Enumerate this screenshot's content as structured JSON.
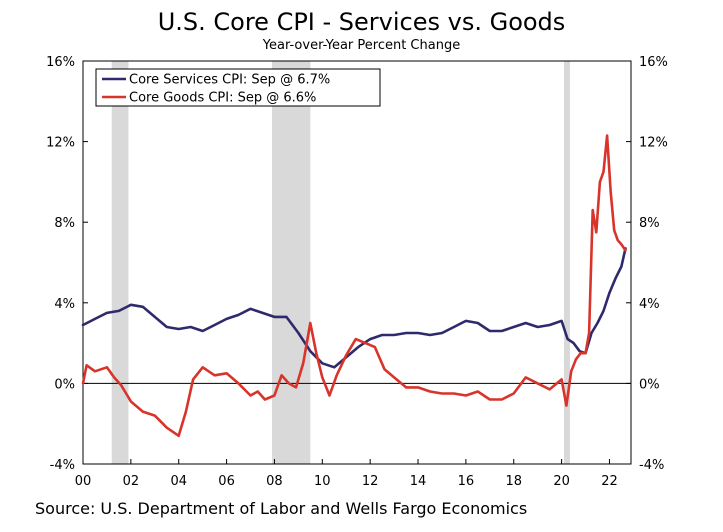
{
  "chart_data": {
    "type": "line",
    "title": "U.S. Core CPI - Services vs. Goods",
    "subtitle": "Year-over-Year Percent Change",
    "source": "Source: U.S. Department of Labor and Wells Fargo Economics",
    "ylim": [
      -4,
      16
    ],
    "xlim": [
      2000.0,
      2022.9
    ],
    "y_ticks": [
      -4,
      0,
      4,
      8,
      12,
      16
    ],
    "y_tick_labels": [
      "-4%",
      "0%",
      "4%",
      "8%",
      "12%",
      "16%"
    ],
    "x_ticks": [
      2000,
      2002,
      2004,
      2006,
      2008,
      2010,
      2012,
      2014,
      2016,
      2018,
      2020,
      2022
    ],
    "x_tick_labels": [
      "00",
      "02",
      "04",
      "06",
      "08",
      "10",
      "12",
      "14",
      "16",
      "18",
      "20",
      "22"
    ],
    "legend_position": "top-left",
    "grid": false,
    "recession_shading": [
      [
        2001.2,
        2001.9
      ],
      [
        2007.9,
        2009.5
      ],
      [
        2020.1,
        2020.35
      ]
    ],
    "colors": {
      "services": "#2e2a6b",
      "goods": "#d9342b",
      "shading": "#d9d9d9",
      "zero_line": "#000000"
    },
    "series": [
      {
        "name": "Core Services CPI: Sep @ 6.7%",
        "key": "services",
        "x": [
          2000.0,
          2000.5,
          2001.0,
          2001.5,
          2002.0,
          2002.5,
          2003.0,
          2003.5,
          2004.0,
          2004.5,
          2005.0,
          2005.5,
          2006.0,
          2006.5,
          2007.0,
          2007.5,
          2008.0,
          2008.5,
          2009.0,
          2009.5,
          2010.0,
          2010.5,
          2011.0,
          2011.5,
          2012.0,
          2012.5,
          2013.0,
          2013.5,
          2014.0,
          2014.5,
          2015.0,
          2015.5,
          2016.0,
          2016.5,
          2017.0,
          2017.5,
          2018.0,
          2018.5,
          2019.0,
          2019.5,
          2020.0,
          2020.25,
          2020.5,
          2020.75,
          2021.0,
          2021.25,
          2021.5,
          2021.75,
          2022.0,
          2022.25,
          2022.5,
          2022.67
        ],
        "y": [
          2.9,
          3.2,
          3.5,
          3.6,
          3.9,
          3.8,
          3.3,
          2.8,
          2.7,
          2.8,
          2.6,
          2.9,
          3.2,
          3.4,
          3.7,
          3.5,
          3.3,
          3.3,
          2.5,
          1.6,
          1.0,
          0.8,
          1.3,
          1.8,
          2.2,
          2.4,
          2.4,
          2.5,
          2.5,
          2.4,
          2.5,
          2.8,
          3.1,
          3.0,
          2.6,
          2.6,
          2.8,
          3.0,
          2.8,
          2.9,
          3.1,
          2.2,
          2.0,
          1.6,
          1.5,
          2.5,
          3.0,
          3.6,
          4.5,
          5.2,
          5.8,
          6.7
        ]
      },
      {
        "name": "Core Goods CPI: Sep @ 6.6%",
        "key": "goods",
        "x": [
          2000.0,
          2000.15,
          2000.5,
          2001.0,
          2001.3,
          2001.6,
          2002.0,
          2002.5,
          2003.0,
          2003.5,
          2004.0,
          2004.3,
          2004.6,
          2005.0,
          2005.5,
          2006.0,
          2006.5,
          2007.0,
          2007.3,
          2007.6,
          2008.0,
          2008.3,
          2008.6,
          2008.9,
          2009.2,
          2009.5,
          2009.75,
          2010.0,
          2010.3,
          2010.6,
          2011.0,
          2011.4,
          2011.8,
          2012.2,
          2012.6,
          2013.0,
          2013.5,
          2014.0,
          2014.5,
          2015.0,
          2015.5,
          2016.0,
          2016.5,
          2017.0,
          2017.5,
          2018.0,
          2018.5,
          2019.0,
          2019.5,
          2020.0,
          2020.2,
          2020.4,
          2020.6,
          2020.8,
          2021.0,
          2021.15,
          2021.3,
          2021.45,
          2021.6,
          2021.75,
          2021.9,
          2022.05,
          2022.2,
          2022.35,
          2022.5,
          2022.67
        ],
        "y": [
          0.0,
          0.9,
          0.6,
          0.8,
          0.3,
          -0.1,
          -0.9,
          -1.4,
          -1.6,
          -2.2,
          -2.6,
          -1.4,
          0.2,
          0.8,
          0.4,
          0.5,
          0.0,
          -0.6,
          -0.4,
          -0.8,
          -0.6,
          0.4,
          0.0,
          -0.2,
          1.0,
          3.0,
          1.5,
          0.3,
          -0.6,
          0.4,
          1.4,
          2.2,
          2.0,
          1.8,
          0.7,
          0.3,
          -0.2,
          -0.2,
          -0.4,
          -0.5,
          -0.5,
          -0.6,
          -0.4,
          -0.8,
          -0.8,
          -0.5,
          0.3,
          0.0,
          -0.3,
          0.2,
          -1.1,
          0.6,
          1.2,
          1.5,
          1.5,
          2.5,
          8.6,
          7.5,
          10.0,
          10.5,
          12.3,
          9.5,
          7.6,
          7.1,
          6.9,
          6.6
        ]
      }
    ]
  }
}
